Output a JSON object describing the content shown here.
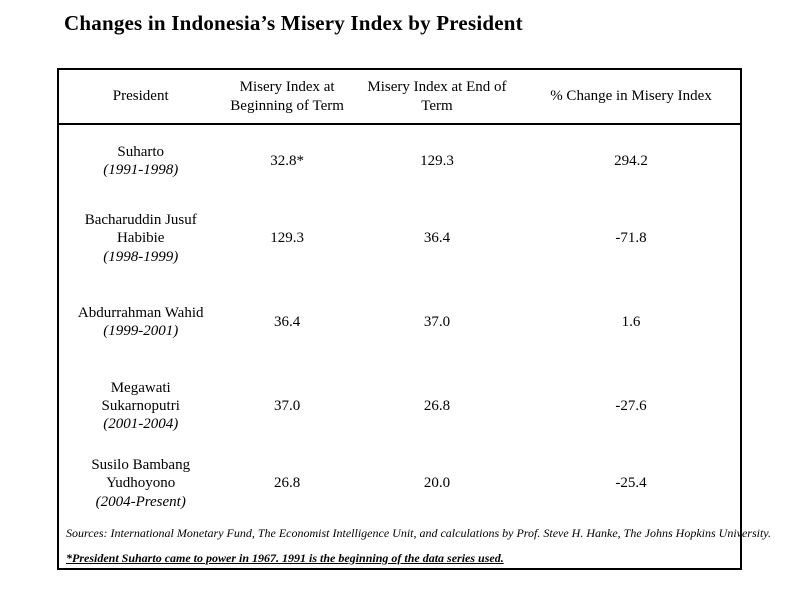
{
  "title": "Changes in Indonesia’s Misery Index by President",
  "colors": {
    "text": "#000000",
    "background": "#ffffff",
    "border": "#000000"
  },
  "table": {
    "headers": [
      "President",
      "Misery Index at Beginning of Term",
      "Misery Index at End of Term",
      "% Change in Misery Index"
    ],
    "rows": [
      {
        "president": "Suharto",
        "years": "(1991-1998)",
        "begin": "32.8*",
        "end": "129.3",
        "change": "294.2"
      },
      {
        "president": "Bacharuddin Jusuf Habibie",
        "years": "(1998-1999)",
        "begin": "129.3",
        "end": "36.4",
        "change": "-71.8"
      },
      {
        "president": "Abdurrahman Wahid",
        "years": "(1999-2001)",
        "begin": "36.4",
        "end": "37.0",
        "change": "1.6"
      },
      {
        "president": "Megawati Sukarnoputri",
        "years": "(2001-2004)",
        "begin": "37.0",
        "end": "26.8",
        "change": "-27.6"
      },
      {
        "president": "Susilo Bambang Yudhoyono",
        "years": "(2004-Present)",
        "begin": "26.8",
        "end": "20.0",
        "change": "-25.4"
      }
    ],
    "sources": "Sources: International Monetary Fund, The Economist Intelligence Unit, and calculations by Prof. Steve H. Hanke, The Johns Hopkins University.",
    "footnote": "*President Suharto came to power in 1967. 1991 is the beginning of the data series used."
  }
}
